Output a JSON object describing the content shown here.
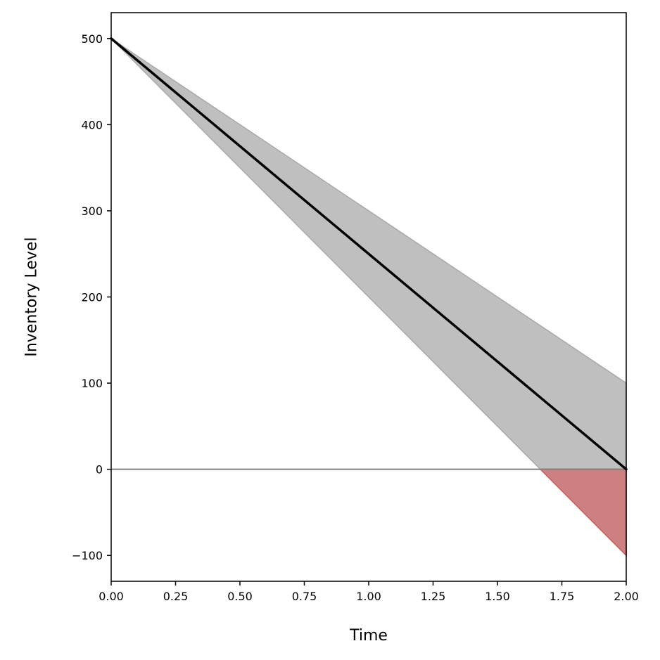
{
  "chart_data": {
    "type": "line",
    "title": "",
    "xlabel": "Time",
    "ylabel": "Inventory Level",
    "xlim": [
      0,
      2
    ],
    "ylim": [
      -130,
      530
    ],
    "x_ticks": [
      0,
      0.25,
      0.5,
      0.75,
      1.0,
      1.25,
      1.5,
      1.75,
      2.0
    ],
    "x_tick_labels": [
      "0.00",
      "0.25",
      "0.50",
      "0.75",
      "1.00",
      "1.25",
      "1.50",
      "1.75",
      "2.00"
    ],
    "y_ticks": [
      -100,
      0,
      100,
      200,
      300,
      400,
      500
    ],
    "y_tick_labels": [
      "−100",
      "0",
      "100",
      "200",
      "300",
      "400",
      "500"
    ],
    "grid": false,
    "series": [
      {
        "values_x": [
          0,
          2
        ],
        "values_y": [
          500,
          0
        ],
        "color": "#000000",
        "role": "mean-line"
      }
    ],
    "band": {
      "x": [
        0,
        2
      ],
      "upper": [
        500,
        100
      ],
      "lower": [
        500,
        -100
      ],
      "color": "#bfbfbf",
      "edge_color": "#a9a9a9"
    },
    "shortage_region": {
      "x": [
        1.6667,
        2
      ],
      "upper": [
        0,
        0
      ],
      "lower": [
        0,
        -100
      ],
      "color": "#cd8080",
      "edge_color": "#cd5c5c"
    },
    "reference_line": {
      "y": 0,
      "color": "#808080"
    }
  }
}
